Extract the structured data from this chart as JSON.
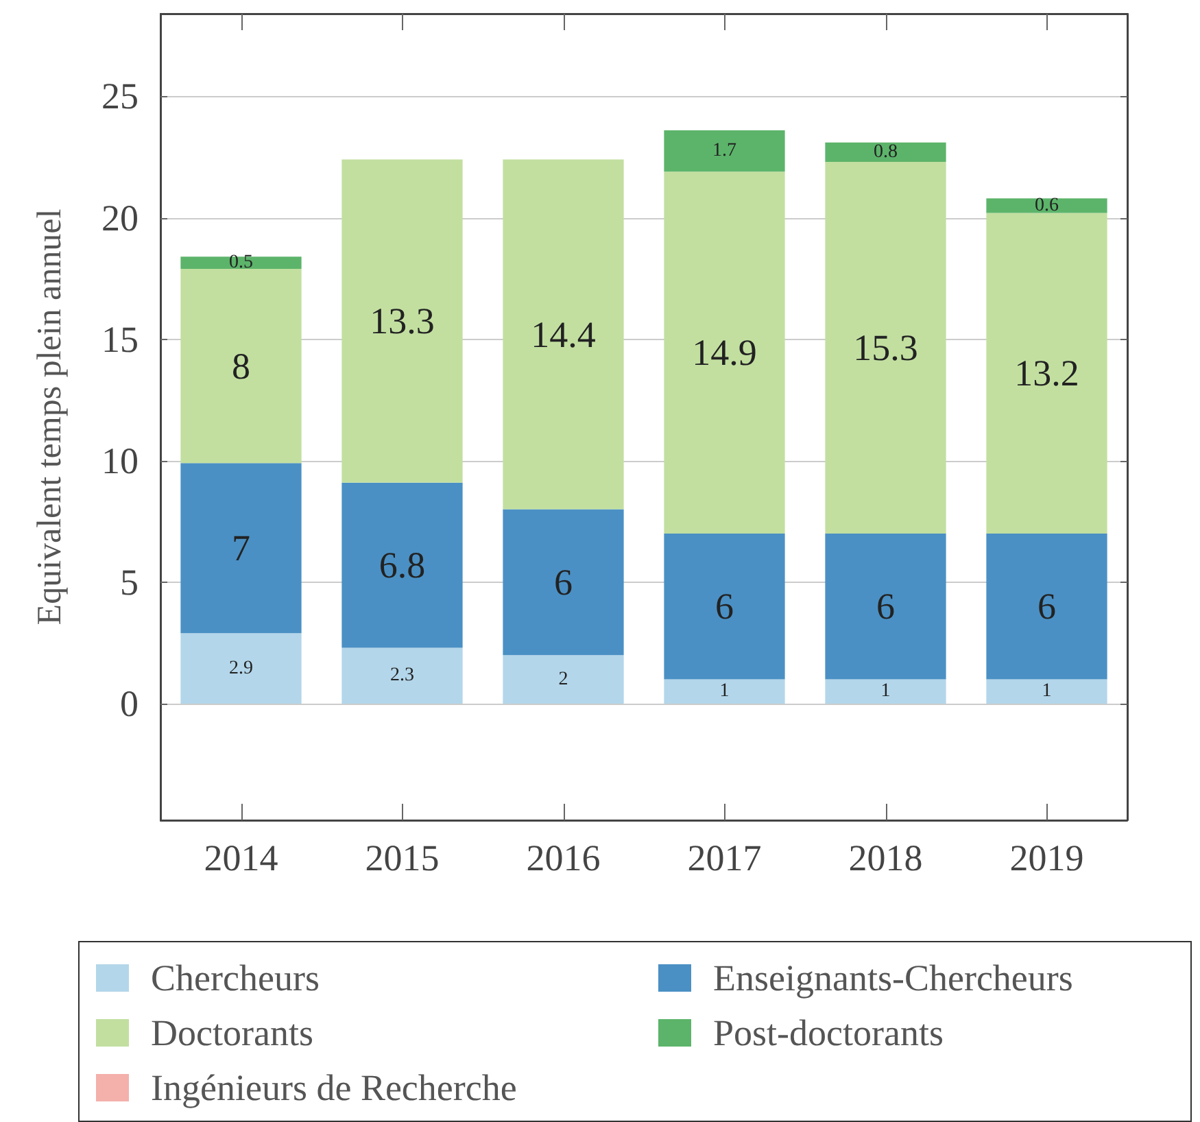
{
  "chart_data": {
    "type": "bar",
    "stacked": true,
    "ylabel": "Equivalent temps plein annuel",
    "categories": [
      "2014",
      "2015",
      "2016",
      "2017",
      "2018",
      "2019"
    ],
    "series": [
      {
        "name": "Chercheurs",
        "color": "#b3d6ea",
        "values": [
          2.9,
          2.3,
          2,
          1,
          1,
          1
        ],
        "value_labels": [
          "2.9",
          "2.3",
          "2",
          "1",
          "1",
          "1"
        ]
      },
      {
        "name": "Enseignants-Chercheurs",
        "color": "#4a90c4",
        "values": [
          7,
          6.8,
          6,
          6,
          6,
          6
        ],
        "value_labels": [
          "7",
          "6.8",
          "6",
          "6",
          "6",
          "6"
        ]
      },
      {
        "name": "Doctorants",
        "color": "#c2dfa0",
        "values": [
          8,
          13.3,
          14.4,
          14.9,
          15.3,
          13.2
        ],
        "value_labels": [
          "8",
          "13.3",
          "14.4",
          "14.9",
          "15.3",
          "13.2"
        ]
      },
      {
        "name": "Post-doctorants",
        "color": "#5cb46a",
        "values": [
          0.5,
          0,
          0,
          1.7,
          0.8,
          0.6
        ],
        "value_labels": [
          "0.5",
          null,
          null,
          "1.7",
          "0.8",
          "0.6"
        ]
      },
      {
        "name": "Ingénieurs de Recherche",
        "color": "#f4b0ab",
        "values": [
          0,
          0,
          0,
          0,
          0,
          0
        ],
        "value_labels": [
          null,
          null,
          null,
          null,
          null,
          null
        ]
      }
    ],
    "ylim": [
      -4.8,
      28.4
    ],
    "yticks": [
      0,
      5,
      10,
      15,
      20,
      25
    ],
    "grid": "y",
    "legend": "bottom"
  }
}
